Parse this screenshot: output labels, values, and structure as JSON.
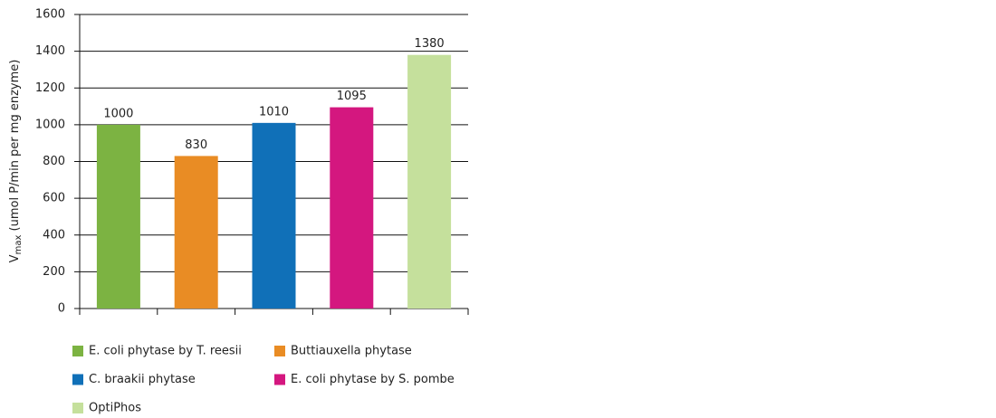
{
  "chart_data": {
    "type": "bar",
    "ylabel": {
      "main": "V",
      "sub": "max",
      "rest": " (umol P/min per mg enzyme)"
    },
    "categories": [
      "E. coli phytase by T. reesii",
      "Buttiauxella phytase",
      "C. braakii phytase",
      "E. coli phytase by S. pombe",
      "OptiPhos"
    ],
    "values": [
      1000,
      830,
      1010,
      1095,
      1380
    ],
    "colors": [
      "#7cb342",
      "#e98c24",
      "#1070b8",
      "#d4177f",
      "#c5e09c"
    ],
    "ylim": [
      0,
      1600
    ],
    "yticks": [
      0,
      200,
      400,
      600,
      800,
      1000,
      1200,
      1400,
      1600
    ],
    "grid": true
  }
}
